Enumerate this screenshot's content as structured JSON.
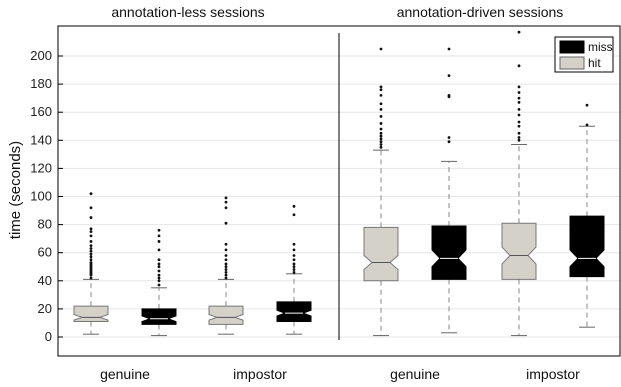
{
  "chart_data": {
    "type": "box",
    "ylabel": "time (seconds)",
    "ylim": [
      -10,
      220
    ],
    "yticks": [
      0,
      20,
      40,
      60,
      80,
      100,
      120,
      140,
      160,
      180,
      200
    ],
    "grid": true,
    "legend": {
      "placement": "top-right",
      "entries": [
        {
          "name": "miss",
          "color": "#000000"
        },
        {
          "name": "hit",
          "color": "#d4d1c9"
        }
      ]
    },
    "colors": {
      "hit": "#d4d1c9",
      "miss": "#000000"
    },
    "panels": [
      {
        "title": "annotation-less sessions",
        "categories": [
          "genuine",
          "impostor"
        ],
        "groups": [
          {
            "category": "genuine",
            "boxes": [
              {
                "series": "hit",
                "min": 2,
                "q1": 11,
                "median": 14,
                "q3": 22,
                "max": 41,
                "notch_low": 12,
                "notch_high": 16,
                "outliers": [
                  42,
                  44,
                  45,
                  46,
                  47,
                  48,
                  49,
                  50,
                  51,
                  52,
                  53,
                  55,
                  57,
                  59,
                  61,
                  63,
                  65,
                  68,
                  72,
                  75,
                  77,
                  85,
                  92,
                  102
                ]
              },
              {
                "series": "miss",
                "min": 1,
                "q1": 9,
                "median": 13,
                "q3": 20,
                "max": 35,
                "notch_low": 11,
                "notch_high": 15,
                "outliers": [
                  37,
                  40,
                  42,
                  44,
                  47,
                  50,
                  52,
                  55,
                  62,
                  68,
                  72,
                  76
                ]
              }
            ]
          },
          {
            "category": "impostor",
            "boxes": [
              {
                "series": "hit",
                "min": 2,
                "q1": 9,
                "median": 14,
                "q3": 22,
                "max": 41,
                "notch_low": 12,
                "notch_high": 16,
                "outliers": [
                  42,
                  44,
                  46,
                  48,
                  50,
                  52,
                  55,
                  58,
                  62,
                  66,
                  81,
                  92,
                  96,
                  99
                ]
              },
              {
                "series": "miss",
                "min": 2,
                "q1": 11,
                "median": 17,
                "q3": 25,
                "max": 45,
                "notch_low": 15,
                "notch_high": 19,
                "outliers": [
                  46,
                  48,
                  50,
                  52,
                  55,
                  58,
                  62,
                  66,
                  87,
                  93
                ]
              }
            ]
          }
        ]
      },
      {
        "title": "annotation-driven sessions",
        "categories": [
          "genuine",
          "impostor"
        ],
        "groups": [
          {
            "category": "genuine",
            "boxes": [
              {
                "series": "hit",
                "min": 1,
                "q1": 40,
                "median": 53,
                "q3": 78,
                "max": 133,
                "notch_low": 48,
                "notch_high": 58,
                "outliers": [
                  135,
                  137,
                  139,
                  141,
                  143,
                  145,
                  148,
                  152,
                  157,
                  162,
                  166,
                  172,
                  176,
                  178,
                  205
                ]
              },
              {
                "series": "miss",
                "min": 3,
                "q1": 41,
                "median": 56,
                "q3": 79,
                "max": 125,
                "notch_low": 50,
                "notch_high": 62,
                "outliers": [
                  139,
                  142,
                  171,
                  172,
                  186,
                  205
                ]
              }
            ]
          },
          {
            "category": "impostor",
            "boxes": [
              {
                "series": "hit",
                "min": 1,
                "q1": 41,
                "median": 58,
                "q3": 81,
                "max": 137,
                "notch_low": 52,
                "notch_high": 64,
                "outliers": [
                  140,
                  142,
                  145,
                  150,
                  153,
                  158,
                  162,
                  167,
                  170,
                  174,
                  178,
                  193,
                  217
                ]
              },
              {
                "series": "miss",
                "min": 7,
                "q1": 43,
                "median": 56,
                "q3": 86,
                "max": 150,
                "notch_low": 50,
                "notch_high": 62,
                "outliers": [
                  151,
                  165
                ]
              }
            ]
          }
        ]
      }
    ]
  }
}
